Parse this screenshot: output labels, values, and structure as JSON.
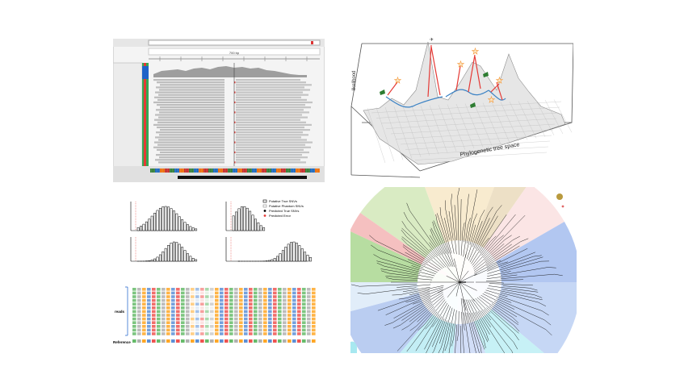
{
  "figure": {
    "panel_a": {
      "ruler": "700 bp",
      "ticks": [
        "",
        "",
        "",
        "",
        "",
        "",
        "",
        ""
      ]
    },
    "panel_b": {
      "ylabel": "likelihood",
      "xlabel": "Phylogenetic tree space"
    },
    "panel_c": {
      "legend": [
        "Putative True SNVs",
        "Putative Phantom SNVs",
        "Predicted True SNVs",
        "Predicted Error"
      ]
    },
    "panel_e": {
      "row_label_top": "reads",
      "row_label_bottom": "Reference"
    }
  }
}
